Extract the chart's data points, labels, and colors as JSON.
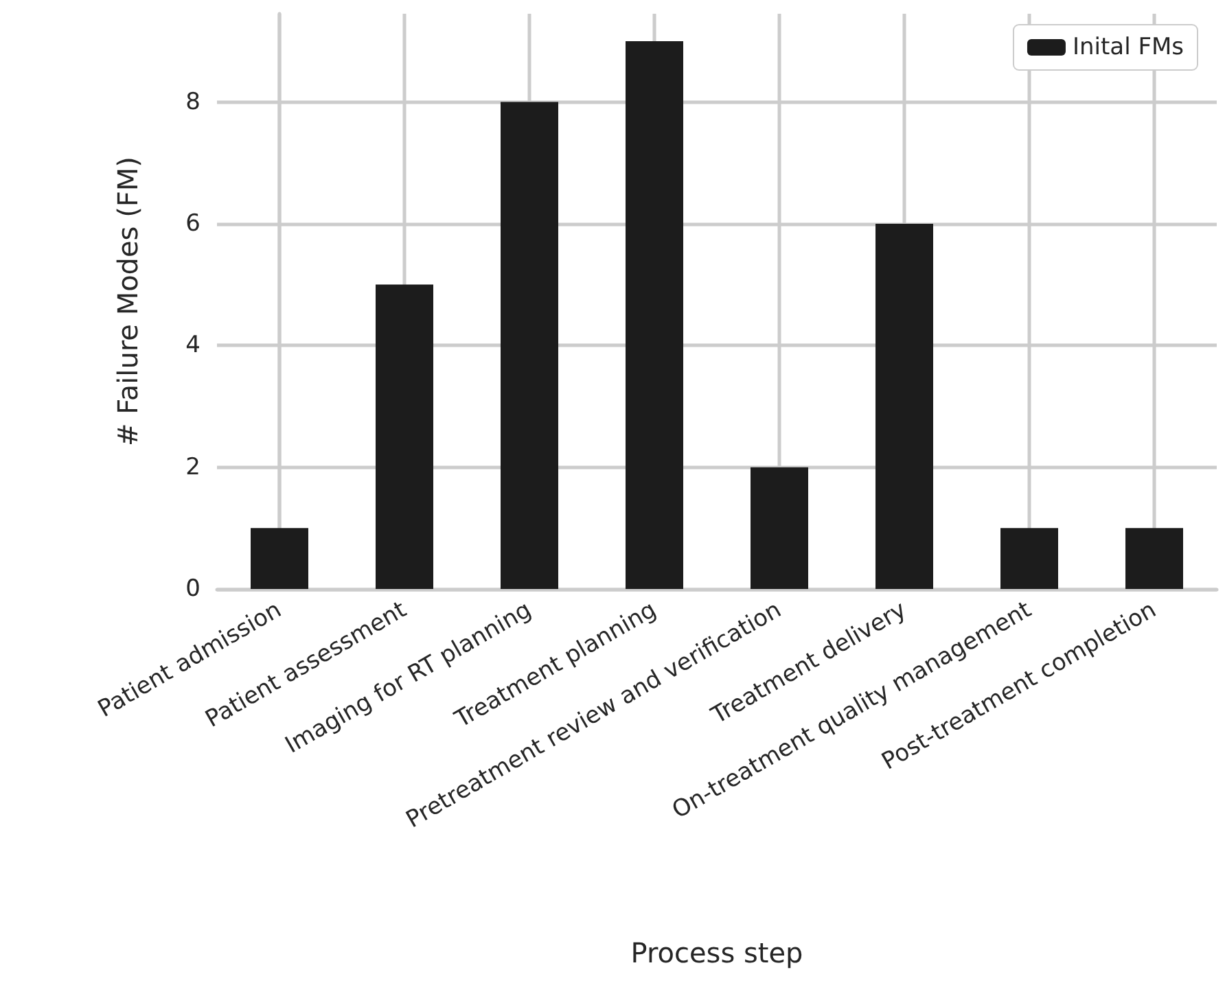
{
  "chart_data": {
    "type": "bar",
    "xlabel": "Process step",
    "ylabel": "# Failure Modes (FM)",
    "categories": [
      "Patient admission",
      "Patient assessment",
      "Imaging for RT planning",
      "Treatment planning",
      "Pretreatment review and verification",
      "Treatment delivery",
      "On-treatment quality management",
      "Post-treatment completion"
    ],
    "series": [
      {
        "name": "Inital FMs",
        "color": "#1c1c1c",
        "values": [
          1,
          5,
          8,
          9,
          2,
          6,
          1,
          1
        ]
      }
    ],
    "ylim": [
      0,
      9.45
    ],
    "yticks": [
      0,
      2,
      4,
      6,
      8
    ],
    "grid": true,
    "legend": "top right"
  }
}
